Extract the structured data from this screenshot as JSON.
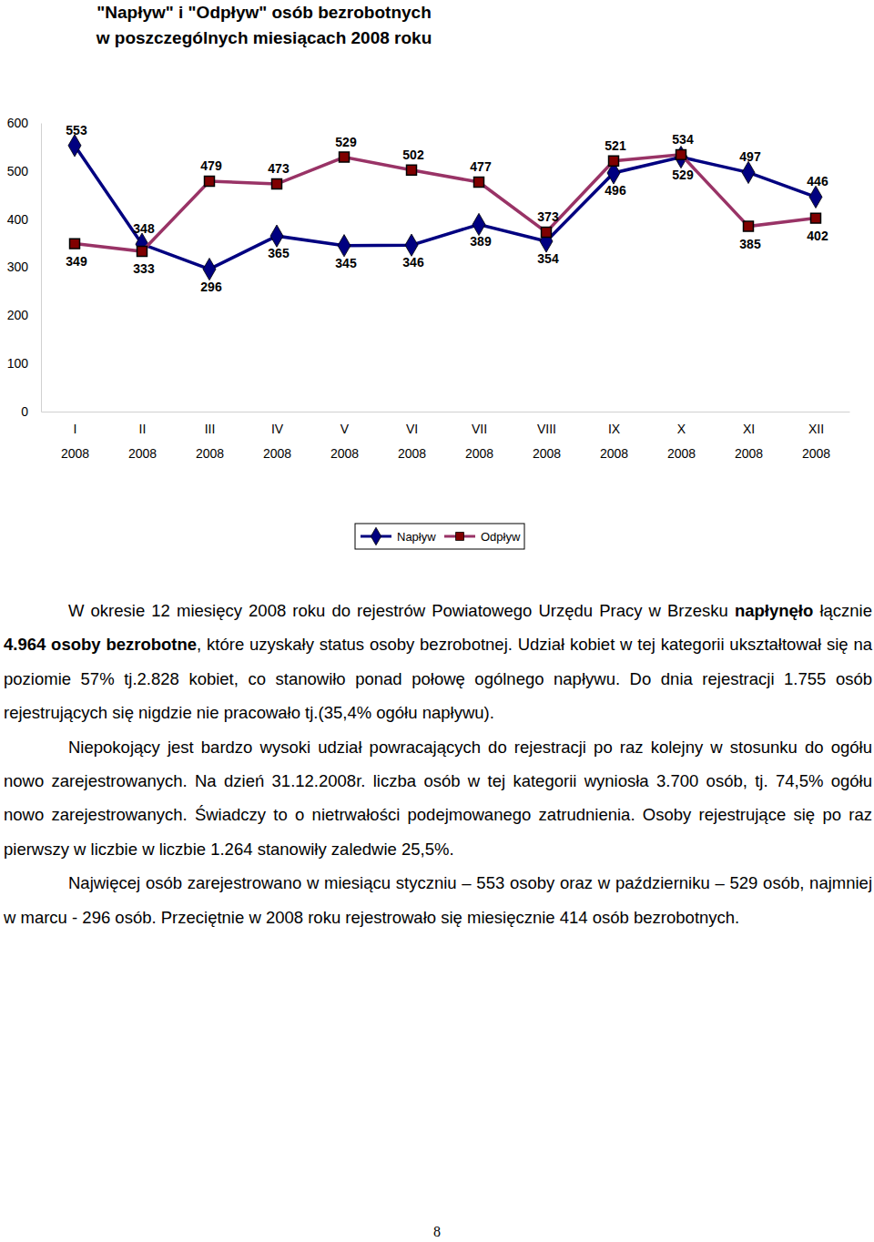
{
  "chart_data": {
    "type": "line",
    "title": "\"Napływ\" i \"Odpływ\" osób bezrobotnych\nw poszczególnych miesiącach 2008 roku",
    "categories": [
      "I\n2008",
      "II\n2008",
      "III\n2008",
      "IV\n2008",
      "V\n2008",
      "VI\n2008",
      "VII\n2008",
      "VIII\n2008",
      "IX\n2008",
      "X\n2008",
      "XI\n2008",
      "XII\n2008"
    ],
    "series": [
      {
        "name": "Napływ",
        "color": "#000080",
        "marker": "diamond",
        "values": [
          553,
          348,
          296,
          365,
          345,
          346,
          389,
          354,
          496,
          529,
          497,
          446
        ]
      },
      {
        "name": "Odpływ",
        "color": "#993366",
        "marker": "square",
        "values": [
          349,
          333,
          479,
          473,
          529,
          502,
          477,
          373,
          521,
          534,
          385,
          402
        ]
      }
    ],
    "ylim": [
      0,
      600
    ],
    "yticks": [
      0,
      100,
      200,
      300,
      400,
      500,
      600
    ],
    "grid": false,
    "legend": "bottom",
    "data_labels": true
  },
  "document": {
    "paragraphs": [
      [
        {
          "text": "W okresie 12 miesięcy 2008 roku do rejestrów Powiatowego Urzędu Pracy w Brzesku ",
          "bold": false
        },
        {
          "text": "napłynęło",
          "bold": true
        },
        {
          "text": " łącznie ",
          "bold": false
        },
        {
          "text": "4.964 osoby bezrobotne",
          "bold": true
        },
        {
          "text": ", które uzyskały status osoby bezrobotnej. Udział kobiet w tej kategorii ukształtował się na poziomie 57% tj.2.828 kobiet, co stanowiło ponad połowę ogólnego napływu. Do dnia rejestracji 1.755 osób rejestrujących się nigdzie nie pracowało tj.(35,4% ogółu napływu).",
          "bold": false
        }
      ],
      [
        {
          "text": "Niepokojący jest bardzo wysoki udział powracających do rejestracji po raz kolejny w stosunku do ogółu nowo zarejestrowanych. Na dzień 31.12.2008r. liczba osób w tej kategorii wyniosła 3.700 osób, tj. 74,5% ogółu nowo zarejestrowanych. Świadczy to o nietrwałości podejmowanego zatrudnienia. Osoby rejestrujące się po raz pierwszy w liczbie w liczbie 1.264 stanowiły zaledwie 25,5%.",
          "bold": false
        }
      ],
      [
        {
          "text": "Najwięcej osób zarejestrowano w miesiącu styczniu – 553 osoby oraz  w październiku – 529 osób, najmniej w marcu - 296 osób. Przeciętnie w 2008 roku rejestrowało się miesięcznie 414 osób bezrobotnych.",
          "bold": false
        }
      ]
    ],
    "page_number": "8"
  }
}
